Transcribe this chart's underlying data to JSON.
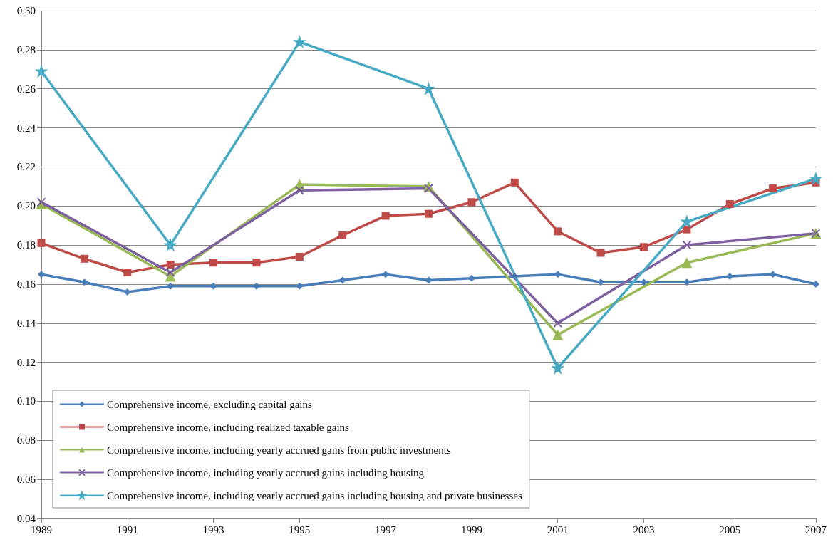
{
  "chart_data": {
    "type": "line",
    "xlim": [
      1989,
      2007
    ],
    "xticks": [
      1989,
      1991,
      1993,
      1995,
      1997,
      1999,
      2001,
      2003,
      2005,
      2007
    ],
    "ylim": [
      0.04,
      0.3
    ],
    "yticks": [
      {
        "value": 0.04,
        "label": "0.04"
      },
      {
        "value": 0.06,
        "label": "0.06"
      },
      {
        "value": 0.08,
        "label": "0.08"
      },
      {
        "value": 0.1,
        "label": "0.10"
      },
      {
        "value": 0.12,
        "label": "0.12"
      },
      {
        "value": 0.14,
        "label": "0.14"
      },
      {
        "value": 0.16,
        "label": "0.16"
      },
      {
        "value": 0.18,
        "label": "0.18"
      },
      {
        "value": 0.2,
        "label": "0.20"
      },
      {
        "value": 0.22,
        "label": "0.22"
      },
      {
        "value": 0.24,
        "label": "0.24"
      },
      {
        "value": 0.26,
        "label": "0.26"
      },
      {
        "value": 0.28,
        "label": "0.28"
      },
      {
        "value": 0.3,
        "label": "0.30"
      }
    ],
    "grid": "y",
    "legend": "bottom left",
    "line_style": "solid",
    "x": [
      1989,
      1990,
      1991,
      1992,
      1993,
      1994,
      1995,
      1996,
      1997,
      1998,
      1999,
      2000,
      2001,
      2002,
      2003,
      2004,
      2005,
      2006,
      2007
    ],
    "series": [
      {
        "name": "Comprehensive income, excluding capital gains",
        "color": "#4a7ebb",
        "marker": "diamond",
        "values": [
          0.165,
          0.161,
          0.156,
          0.159,
          0.159,
          0.159,
          0.159,
          0.162,
          0.165,
          0.162,
          0.163,
          0.164,
          0.165,
          0.161,
          0.161,
          0.161,
          0.164,
          0.165,
          0.16
        ]
      },
      {
        "name": "Comprehensive income, including realized taxable gains",
        "color": "#be4b48",
        "marker": "square",
        "values": [
          0.181,
          0.173,
          0.166,
          0.17,
          0.171,
          0.171,
          0.174,
          0.185,
          0.195,
          0.196,
          0.202,
          0.212,
          0.187,
          0.176,
          0.179,
          0.188,
          0.201,
          0.209,
          0.212
        ]
      },
      {
        "name": "Comprehensive income, including yearly accrued gains from public investments",
        "color": "#98b954",
        "marker": "triangle",
        "x": [
          1989,
          1992,
          1995,
          1998,
          2001,
          2004,
          2007
        ],
        "values": [
          0.201,
          0.164,
          0.211,
          0.21,
          0.134,
          0.171,
          0.186
        ]
      },
      {
        "name": "Comprehensive income, including yearly accrued gains including housing",
        "color": "#7d60a0",
        "marker": "cross",
        "x": [
          1989,
          1992,
          1995,
          1998,
          2001,
          2004,
          2007
        ],
        "values": [
          0.202,
          0.166,
          0.208,
          0.209,
          0.14,
          0.18,
          0.186
        ]
      },
      {
        "name": "Comprehensive income, including yearly accrued gains including housing and private businesses",
        "color": "#46aac5",
        "marker": "star",
        "x": [
          1989,
          1992,
          1995,
          1998,
          2001,
          2004,
          2007
        ],
        "values": [
          0.269,
          0.18,
          0.284,
          0.26,
          0.117,
          0.192,
          0.214
        ]
      }
    ]
  }
}
